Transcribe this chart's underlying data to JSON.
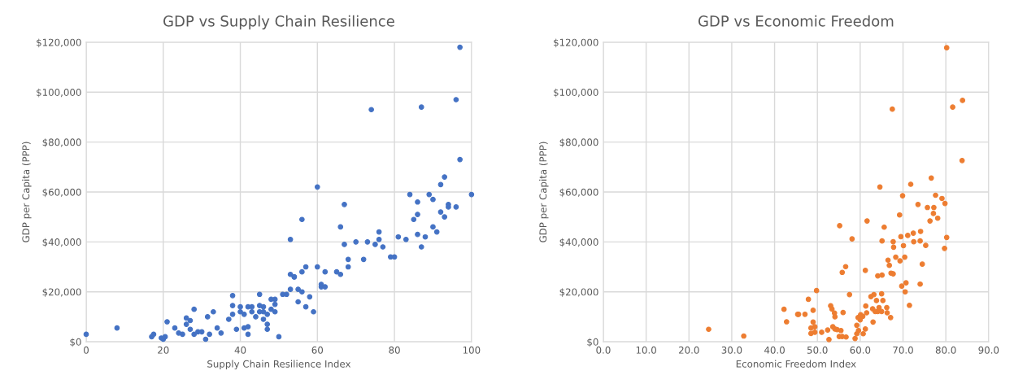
{
  "chart_data": [
    {
      "type": "scatter",
      "title": "GDP vs Supply Chain Resilience",
      "xlabel": "Supply Chain Resilience Index",
      "ylabel": "GDP per Capita (PPP)",
      "marker": "circle",
      "grid": true,
      "xlim": [
        0,
        100
      ],
      "xticks": [
        0,
        20,
        40,
        60,
        80,
        100
      ],
      "ylim": [
        0,
        120000
      ],
      "yticks": [
        {
          "value": 0,
          "label": "$0"
        },
        {
          "value": 20000,
          "label": "$20,000"
        },
        {
          "value": 40000,
          "label": "$40,000"
        },
        {
          "value": 60000,
          "label": "$60,000"
        },
        {
          "value": 80000,
          "label": "$80,000"
        },
        {
          "value": 100000,
          "label": "$100,000"
        },
        {
          "value": 120000,
          "label": "$120,000"
        }
      ],
      "series": [
        {
          "color": "#4472c4",
          "x": [
            0,
            8,
            17,
            17.5,
            19.5,
            20,
            20.5,
            21,
            23,
            24,
            25,
            26,
            26,
            27,
            27,
            28,
            28,
            29,
            30,
            31,
            31.5,
            32,
            33,
            34,
            35,
            37,
            38,
            38,
            38,
            39,
            40,
            40,
            41,
            41,
            42,
            42,
            42,
            43,
            43,
            44,
            45,
            45,
            45,
            46,
            46,
            46,
            47,
            47,
            47,
            48,
            48,
            49,
            49,
            49,
            50,
            51,
            52,
            53,
            53,
            53,
            54,
            54,
            55,
            55,
            56,
            56,
            56,
            57,
            57,
            58,
            59,
            60,
            60,
            61,
            61,
            62,
            62,
            65,
            66,
            66,
            67,
            67,
            68,
            68,
            70,
            72,
            73,
            74,
            75,
            76,
            76,
            77,
            79,
            80,
            81,
            83,
            84,
            85,
            86,
            86,
            86,
            87,
            87,
            88,
            89,
            90,
            90,
            91,
            92,
            92,
            93,
            93,
            94,
            94,
            96,
            96,
            97,
            97,
            100
          ],
          "values": [
            3000,
            5500,
            2000,
            3000,
            1500,
            1000,
            2000,
            8000,
            5500,
            3500,
            3000,
            7000,
            9500,
            5000,
            8500,
            13000,
            3000,
            4000,
            4000,
            1000,
            10000,
            3000,
            12000,
            5500,
            3500,
            9000,
            14500,
            18500,
            11000,
            5000,
            12000,
            14000,
            5500,
            11000,
            14000,
            3000,
            6000,
            12000,
            14000,
            10000,
            14500,
            12000,
            19000,
            12000,
            9000,
            14000,
            7000,
            11000,
            5000,
            13000,
            17000,
            17000,
            15000,
            12000,
            2000,
            19000,
            19000,
            41000,
            27000,
            21000,
            26000,
            26000,
            21000,
            16000,
            20000,
            28000,
            49000,
            30000,
            14000,
            18000,
            12000,
            62000,
            30000,
            22000,
            23000,
            22000,
            28000,
            28000,
            27000,
            46000,
            55000,
            39000,
            30000,
            33000,
            40000,
            33000,
            40000,
            93000,
            39000,
            41000,
            44000,
            38000,
            34000,
            34000,
            42000,
            41000,
            59000,
            49000,
            51000,
            43000,
            56000,
            94000,
            38000,
            42000,
            59000,
            46000,
            57000,
            44000,
            52000,
            63000,
            50000,
            66000,
            55000,
            54000,
            54000,
            97000,
            118000,
            73000,
            59000
          ]
        }
      ]
    },
    {
      "type": "scatter",
      "title": "GDP vs Economic Freedom",
      "xlabel": "Economic Freedom Index",
      "ylabel": "GDP per Capita (PPP)",
      "marker": "circle",
      "grid": true,
      "xlim": [
        0,
        90
      ],
      "xticks": [
        {
          "value": 0,
          "label": "0.0"
        },
        {
          "value": 10,
          "label": "10.0"
        },
        {
          "value": 20,
          "label": "20.0"
        },
        {
          "value": 30,
          "label": "30.0"
        },
        {
          "value": 40,
          "label": "40.0"
        },
        {
          "value": 50,
          "label": "50.0"
        },
        {
          "value": 60,
          "label": "60.0"
        },
        {
          "value": 70,
          "label": "70.0"
        },
        {
          "value": 80,
          "label": "80.0"
        },
        {
          "value": 90,
          "label": "90.0"
        }
      ],
      "ylim": [
        0,
        120000
      ],
      "yticks": [
        {
          "value": 0,
          "label": "$0"
        },
        {
          "value": 20000,
          "label": "$20,000"
        },
        {
          "value": 40000,
          "label": "$40,000"
        },
        {
          "value": 60000,
          "label": "$60,000"
        },
        {
          "value": 80000,
          "label": "$80,000"
        },
        {
          "value": 100000,
          "label": "$100,000"
        },
        {
          "value": 120000,
          "label": "$120,000"
        }
      ],
      "series": [
        {
          "color": "#ed7d31",
          "x": [
            24.6,
            32.8,
            42.2,
            42.8,
            45.4,
            80.2,
            83.9,
            81.6,
            67.5,
            83.8,
            76.6,
            71.8,
            64.6,
            69.9,
            77.6,
            79.1,
            79.8,
            73.5,
            75.7,
            77.2,
            77.1,
            78.1,
            76.3,
            69.2,
            61.6,
            55.2,
            65.6,
            58.1,
            65.1,
            67.7,
            67.8,
            69.5,
            70.1,
            71.1,
            72.4,
            74.1,
            72.5,
            74.0,
            75.3,
            80.2,
            79.7,
            68.3,
            69.3,
            70.4,
            66.5,
            66.8,
            67.2,
            67.7,
            61.2,
            64.1,
            65.1,
            74.5,
            74.0,
            70.7,
            69.7,
            70.5,
            71.5,
            56.6,
            55.8,
            49.8,
            57.5,
            47.9,
            49.0,
            45.6,
            47.1,
            53.1,
            53.4,
            54.0,
            54.1,
            56.0,
            49.0,
            48.5,
            49.4,
            49.4,
            48.5,
            51.0,
            52.4,
            52.7,
            53.6,
            54.1,
            54.6,
            55.5,
            55.8,
            56.7,
            55.1,
            58.8,
            59.2,
            59.6,
            60.0,
            59.2,
            60.7,
            61.2,
            60.6,
            59.5,
            60.1,
            61.3,
            62.5,
            63.2,
            63.8,
            65.0,
            65.3,
            62.9,
            64.4,
            66.2,
            67.1,
            66.3,
            63.0,
            61.5,
            64.1,
            63.5,
            65.0
          ],
          "values": [
            5000,
            2300,
            13000,
            8000,
            11000,
            117800,
            96700,
            94000,
            93200,
            72600,
            65600,
            63100,
            62000,
            58500,
            58700,
            57400,
            55400,
            55000,
            53800,
            53800,
            51400,
            49500,
            48400,
            50800,
            48400,
            46500,
            45900,
            41200,
            40400,
            40100,
            37900,
            42100,
            38500,
            42600,
            43500,
            44200,
            40100,
            40400,
            38600,
            41800,
            37400,
            33900,
            32400,
            33900,
            32700,
            30600,
            27500,
            27200,
            28600,
            26400,
            26700,
            31100,
            23100,
            23600,
            22300,
            20000,
            14600,
            30100,
            27800,
            20500,
            18900,
            17000,
            12600,
            11000,
            11000,
            14400,
            13100,
            11500,
            10000,
            11700,
            7900,
            5500,
            3800,
            6000,
            3300,
            3800,
            4700,
            900,
            6000,
            5100,
            4900,
            4500,
            2100,
            1900,
            2100,
            1300,
            3200,
            4500,
            8800,
            6600,
            3200,
            5100,
            10200,
            9700,
            10800,
            14300,
            18100,
            18900,
            16500,
            19200,
            16500,
            13200,
            13700,
            13700,
            9700,
            11600,
            7900,
            11600,
            12100,
            12100,
            12100
          ]
        }
      ]
    }
  ]
}
